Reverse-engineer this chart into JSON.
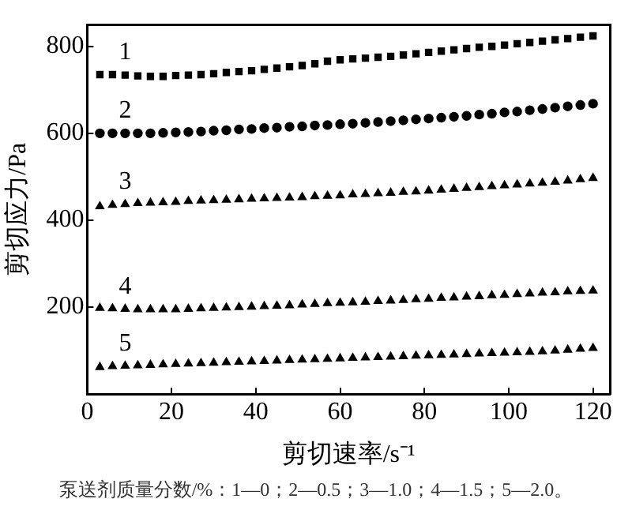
{
  "chart_data": {
    "type": "scatter",
    "xlabel": "剪切速率/s⁻¹",
    "ylabel": "剪切应力/Pa",
    "x": [
      3,
      6,
      9,
      12,
      15,
      18,
      21,
      24,
      27,
      30,
      33,
      36,
      39,
      42,
      45,
      48,
      51,
      54,
      57,
      60,
      63,
      66,
      69,
      72,
      75,
      78,
      81,
      84,
      87,
      90,
      93,
      96,
      99,
      102,
      105,
      108,
      111,
      114,
      117,
      120
    ],
    "series": [
      {
        "name": "1",
        "color": "#000000",
        "marker": "square",
        "values": [
          735,
          735,
          734,
          732,
          731,
          731,
          733,
          734,
          735,
          737,
          740,
          742,
          744,
          747,
          750,
          753,
          756,
          760,
          766,
          769,
          771,
          773,
          775,
          777,
          780,
          783,
          786,
          789,
          792,
          795,
          798,
          800,
          803,
          806,
          809,
          812,
          815,
          818,
          821,
          824
        ]
      },
      {
        "name": "2",
        "color": "#000000",
        "marker": "circle",
        "values": [
          600,
          600,
          600,
          600,
          600,
          601,
          602,
          603,
          604,
          606,
          607,
          609,
          610,
          612,
          613,
          615,
          616,
          618,
          619,
          621,
          622,
          624,
          626,
          628,
          630,
          632,
          634,
          636,
          638,
          640,
          643,
          645,
          648,
          650,
          653,
          656,
          659,
          662,
          665,
          668
        ]
      },
      {
        "name": "3",
        "color": "#000000",
        "marker": "triangle",
        "values": [
          432,
          435,
          437,
          439,
          440,
          441,
          442,
          444,
          445,
          446,
          447,
          448,
          449,
          450,
          451,
          452,
          453,
          455,
          456,
          457,
          459,
          460,
          462,
          463,
          465,
          466,
          468,
          470,
          472,
          474,
          476,
          478,
          480,
          482,
          484,
          486,
          488,
          491,
          494,
          497
        ]
      },
      {
        "name": "4",
        "color": "#000000",
        "marker": "triangle",
        "values": [
          198,
          197,
          196,
          195,
          195,
          195,
          195,
          196,
          197,
          198,
          199,
          200,
          201,
          202,
          203,
          204,
          206,
          207,
          209,
          210,
          211,
          212,
          214,
          215,
          216,
          218,
          219,
          221,
          222,
          224,
          225,
          227,
          228,
          230,
          231,
          233,
          234,
          236,
          237,
          238
        ]
      },
      {
        "name": "5",
        "color": "#000000",
        "marker": "triangle",
        "values": [
          62,
          64,
          65,
          66,
          67,
          68,
          69,
          70,
          71,
          72,
          73,
          74,
          75,
          76,
          77,
          78,
          79,
          80,
          81,
          82,
          83,
          84,
          85,
          86,
          87,
          88,
          89,
          90,
          91,
          92,
          93,
          94,
          95,
          96,
          97,
          98,
          100,
          102,
          104,
          106
        ]
      }
    ],
    "xlim": [
      0,
      124
    ],
    "xticks": [
      0,
      20,
      40,
      60,
      80,
      100,
      120
    ],
    "ylim": [
      0,
      850
    ],
    "yticks": [
      {
        "value": 0,
        "label": null
      },
      200,
      400,
      600,
      800
    ],
    "grid": false,
    "legend": false,
    "annotations": [
      "泵送剂质量分数/%：1—0；2—0.5；3—1.0；4—1.5；5—2.0。"
    ]
  }
}
